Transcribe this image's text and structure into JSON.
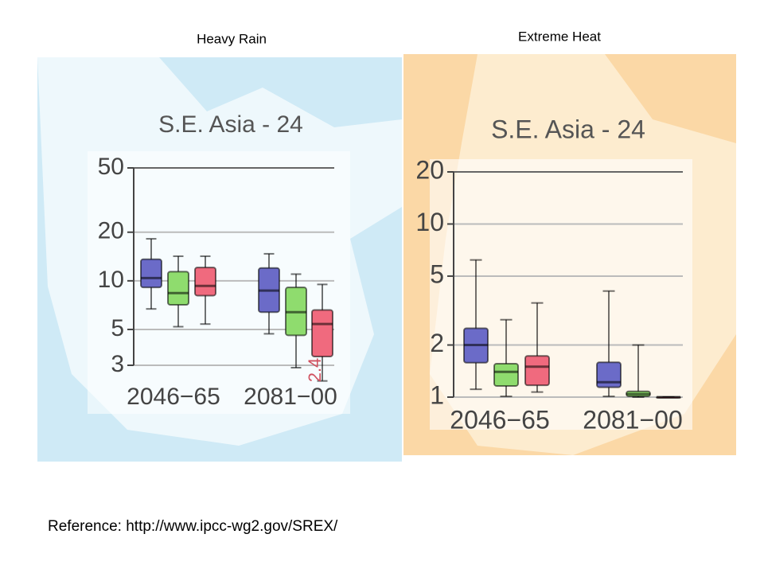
{
  "chart_data": [
    {
      "type": "box",
      "heading": "Heavy Rain",
      "title": "S.E. Asia - 24",
      "categories": [
        "2046−65",
        "2081−00"
      ],
      "log_scale": true,
      "ylim": [
        3,
        50
      ],
      "yticks": [
        3,
        5,
        10,
        20,
        50
      ],
      "grid": true,
      "annotation": "2.4",
      "series": [
        {
          "color": "#6b6bc8",
          "values": [
            {
              "low": 6.7,
              "q1": 9.1,
              "median": 10.4,
              "q3": 13.6,
              "high": 18.2
            },
            {
              "low": 4.7,
              "q1": 6.4,
              "median": 8.7,
              "q3": 12.0,
              "high": 14.7
            }
          ]
        },
        {
          "color": "#8fdc6e",
          "values": [
            {
              "low": 5.2,
              "q1": 7.1,
              "median": 8.4,
              "q3": 11.4,
              "high": 14.2
            },
            {
              "low": 2.9,
              "q1": 4.6,
              "median": 6.4,
              "q3": 9.1,
              "high": 11.0
            }
          ]
        },
        {
          "color": "#f06a7e",
          "values": [
            {
              "low": 5.4,
              "q1": 8.1,
              "median": 9.3,
              "q3": 12.1,
              "high": 14.2
            },
            {
              "low": 2.4,
              "q1": 3.4,
              "median": 5.4,
              "q3": 6.6,
              "high": 9.5
            }
          ]
        }
      ]
    },
    {
      "type": "box",
      "heading": "Extreme Heat",
      "title": "S.E. Asia - 24",
      "categories": [
        "2046−65",
        "2081−00"
      ],
      "log_scale": true,
      "ylim": [
        1,
        20
      ],
      "yticks": [
        1,
        2,
        5,
        10,
        20
      ],
      "grid": true,
      "series": [
        {
          "color": "#6b6bc8",
          "values": [
            {
              "low": 1.11,
              "q1": 1.58,
              "median": 2.0,
              "q3": 2.5,
              "high": 6.2
            },
            {
              "low": 1.01,
              "q1": 1.14,
              "median": 1.22,
              "q3": 1.59,
              "high": 4.1
            }
          ]
        },
        {
          "color": "#8fdc6e",
          "values": [
            {
              "low": 1.01,
              "q1": 1.16,
              "median": 1.4,
              "q3": 1.56,
              "high": 2.8
            },
            {
              "low": 1.0,
              "q1": 1.01,
              "median": 1.04,
              "q3": 1.08,
              "high": 2.0
            }
          ]
        },
        {
          "color": "#f06a7e",
          "values": [
            {
              "low": 1.07,
              "q1": 1.17,
              "median": 1.5,
              "q3": 1.73,
              "high": 3.5
            },
            {
              "low": 1.0,
              "q1": 1.0,
              "median": 1.0,
              "q3": 1.0,
              "high": 1.0
            }
          ]
        }
      ]
    }
  ],
  "footer": "Reference: http://www.ipcc-wg2.gov/SREX/"
}
